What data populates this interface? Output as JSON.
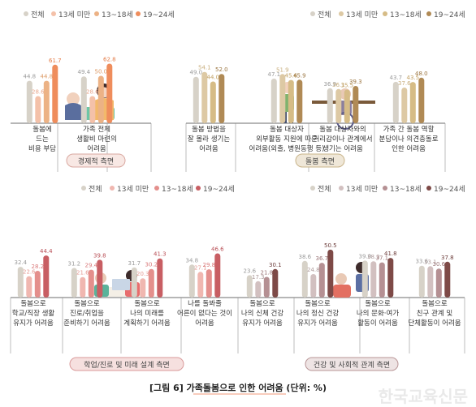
{
  "caption": "[그림 6] 가족돌봄으로 인한 어려움 (단위: %)",
  "watermark": "한국교육신문",
  "colors": {
    "total": "#d7d2c8",
    "under13": "#f4c1a9",
    "age13_18": "#ecb285",
    "age19_24": "#ef8d5c",
    "care_under13": "#ddc9a4",
    "care_13_18": "#d6bc86",
    "care_19_24": "#b08a55",
    "study_under13": "#f0b7b0",
    "study_13_18": "#e48f8c",
    "study_19_24": "#c85e63",
    "health_under13": "#d2c0c0",
    "health_13_18": "#b59093",
    "health_19_24": "#7e4a47",
    "economic_label_bg": "#f8e8e4",
    "care_label_bg": "#efe7d8",
    "study_label_bg": "#f6e0df",
    "health_label_bg": "#eee4e4"
  },
  "legend_labels": [
    "전체",
    "13세 미만",
    "13~18세",
    "19~24세"
  ],
  "section_labels": {
    "economic": "경제적 측면",
    "care": "돌봄 측면",
    "study": "학업/진로 및 미래 설계 측면",
    "health": "건강 및 사회적 관계 측면"
  },
  "chart_data": [
    {
      "type": "bar",
      "section": "경제적 측면",
      "series": [
        {
          "name": "전체",
          "values": [
            44.8,
            49.4
          ]
        },
        {
          "name": "13세 미만",
          "values": [
            28.6,
            28.6
          ]
        },
        {
          "name": "13~18세",
          "values": [
            44.8,
            50.0
          ]
        },
        {
          "name": "19~24세",
          "values": [
            61.7,
            62.8
          ]
        }
      ],
      "categories": [
        [
          "돌봄에",
          "드는",
          "비용 부담"
        ],
        [
          "가족 전체",
          "생활비 마련의",
          "어려움"
        ]
      ]
    },
    {
      "type": "bar",
      "section": "돌봄 측면",
      "series": [
        {
          "name": "전체",
          "values": [
            49.0,
            47.1,
            36.9,
            43.7
          ]
        },
        {
          "name": "13세 미만",
          "values": [
            54.1,
            51.9,
            36.1,
            37.6
          ]
        },
        {
          "name": "13~18세",
          "values": [
            44.0,
            45.6,
            35.5,
            43.5
          ]
        },
        {
          "name": "19~24세",
          "values": [
            52.0,
            45.9,
            39.3,
            48.0
          ]
        }
      ],
      "categories": [
        [
          "돌봄 방법을",
          "잘 몰라 생기는",
          "어려움"
        ],
        [
          "돌봄 대상자",
          "외부활동 지원에 따른",
          "어려움(외출, 병원동행 등)"
        ],
        [
          "돌봄 대상자와의",
          "거리감이나 관계에서",
          "생기는 어려움"
        ],
        [
          "가족 간 돌봄 역할",
          "분담이나 의견충돌로",
          "인한 어려움"
        ]
      ]
    },
    {
      "type": "bar",
      "section": "학업/진로 및 미래 설계 측면",
      "series": [
        {
          "name": "전체",
          "values": [
            32.4,
            31.2,
            31.7,
            34.8
          ]
        },
        {
          "name": "13세 미만",
          "values": [
            22.6,
            21.6,
            20.3,
            27.1
          ]
        },
        {
          "name": "13~18세",
          "values": [
            28.2,
            29.4,
            30.2,
            29.8
          ]
        },
        {
          "name": "19~24세",
          "values": [
            44.4,
            39.8,
            41.3,
            46.6
          ]
        }
      ],
      "categories": [
        [
          "돌봄으로",
          "학교/직장 생활",
          "유지가 어려움"
        ],
        [
          "돌봄으로",
          "진로/취업을",
          "준비하기 어려움"
        ],
        [
          "돌봄으로",
          "나의 미래를",
          "계획하기 어려움"
        ],
        [
          "나를 돌봐줄",
          "어른이 없다는 것이",
          "어려움"
        ]
      ]
    },
    {
      "type": "bar",
      "section": "건강 및 사회적 관계 측면",
      "series": [
        {
          "name": "전체",
          "values": [
            23.6,
            38.6,
            39.0,
            33.6
          ]
        },
        {
          "name": "13세 미만",
          "values": [
            17.3,
            24.8,
            38.3,
            33.1
          ]
        },
        {
          "name": "13~18세",
          "values": [
            21.8,
            36.7,
            37.1,
            30.6
          ]
        },
        {
          "name": "19~24세",
          "values": [
            30.1,
            50.5,
            41.8,
            37.8
          ]
        }
      ],
      "categories": [
        [
          "돌봄으로",
          "나의 신체 건강",
          "유지가 어려움"
        ],
        [
          "돌봄으로",
          "나의 정신 건강",
          "유지가 어려움"
        ],
        [
          "돌봄으로",
          "나의 문화·여가",
          "활동이 어려움"
        ],
        [
          "돌봄으로",
          "친구 관계 및",
          "단체활동이 어려움"
        ]
      ]
    }
  ]
}
